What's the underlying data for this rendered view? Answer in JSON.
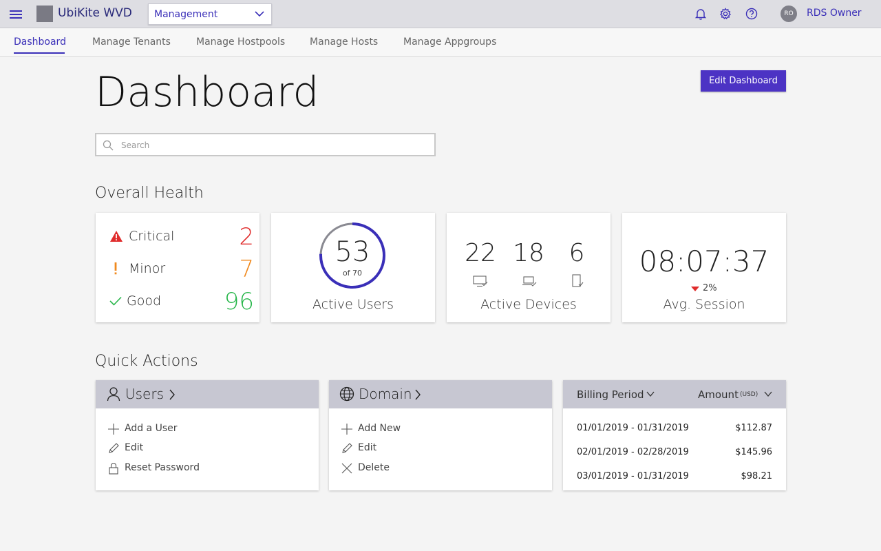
{
  "app": {
    "brand": "UbiKite WVD",
    "mode": "Management",
    "user_initials": "RO",
    "user_name": "RDS Owner"
  },
  "nav": {
    "tabs": [
      "Dashboard",
      "Manage Tenants",
      "Manage Hostpools",
      "Manage Hosts",
      "Manage Appgroups"
    ],
    "active": "Dashboard"
  },
  "page": {
    "title": "Dashboard",
    "edit_label": "Edit Dashboard",
    "search_placeholder": "Search"
  },
  "health": {
    "section_title": "Overall Health",
    "rows": [
      {
        "label": "Critical",
        "value": "2",
        "color": "#e02c2c",
        "icon": "warning-triangle-icon"
      },
      {
        "label": "Minor",
        "value": "7",
        "color": "#f0891e",
        "icon": "exclamation-icon"
      },
      {
        "label": "Good",
        "value": "96",
        "color": "#27b64a",
        "icon": "checkmark-icon"
      }
    ],
    "active_users": {
      "value": "53",
      "of": "of 70",
      "fraction": 0.757,
      "label": "Active Users"
    },
    "active_devices": {
      "label": "Active Devices",
      "items": [
        {
          "value": "22",
          "icon": "desktop-icon"
        },
        {
          "value": "18",
          "icon": "laptop-icon"
        },
        {
          "value": "6",
          "icon": "tablet-icon"
        }
      ]
    },
    "avg_session": {
      "value": "08:07:37",
      "delta": "2%",
      "label": "Avg. Session"
    }
  },
  "quick_actions": {
    "section_title": "Quick Actions",
    "users": {
      "title": "Users",
      "items": [
        "Add a User",
        "Edit",
        "Reset Password"
      ]
    },
    "domain": {
      "title": "Domain",
      "items": [
        "Add New",
        "Edit",
        "Delete"
      ]
    },
    "billing": {
      "period_label": "Billing Period",
      "amount_label": "Amount",
      "currency": "(USD)",
      "rows": [
        {
          "period": "01/01/2019 - 01/31/2019",
          "amount": "$112.87"
        },
        {
          "period": "02/01/2019 - 02/28/2019",
          "amount": "$145.96"
        },
        {
          "period": "03/01/2019 - 01/31/2019",
          "amount": "$98.21"
        }
      ]
    }
  },
  "colors": {
    "accent": "#3a2fb8",
    "button": "#4c33c4",
    "ring": "#3a2fb8"
  }
}
